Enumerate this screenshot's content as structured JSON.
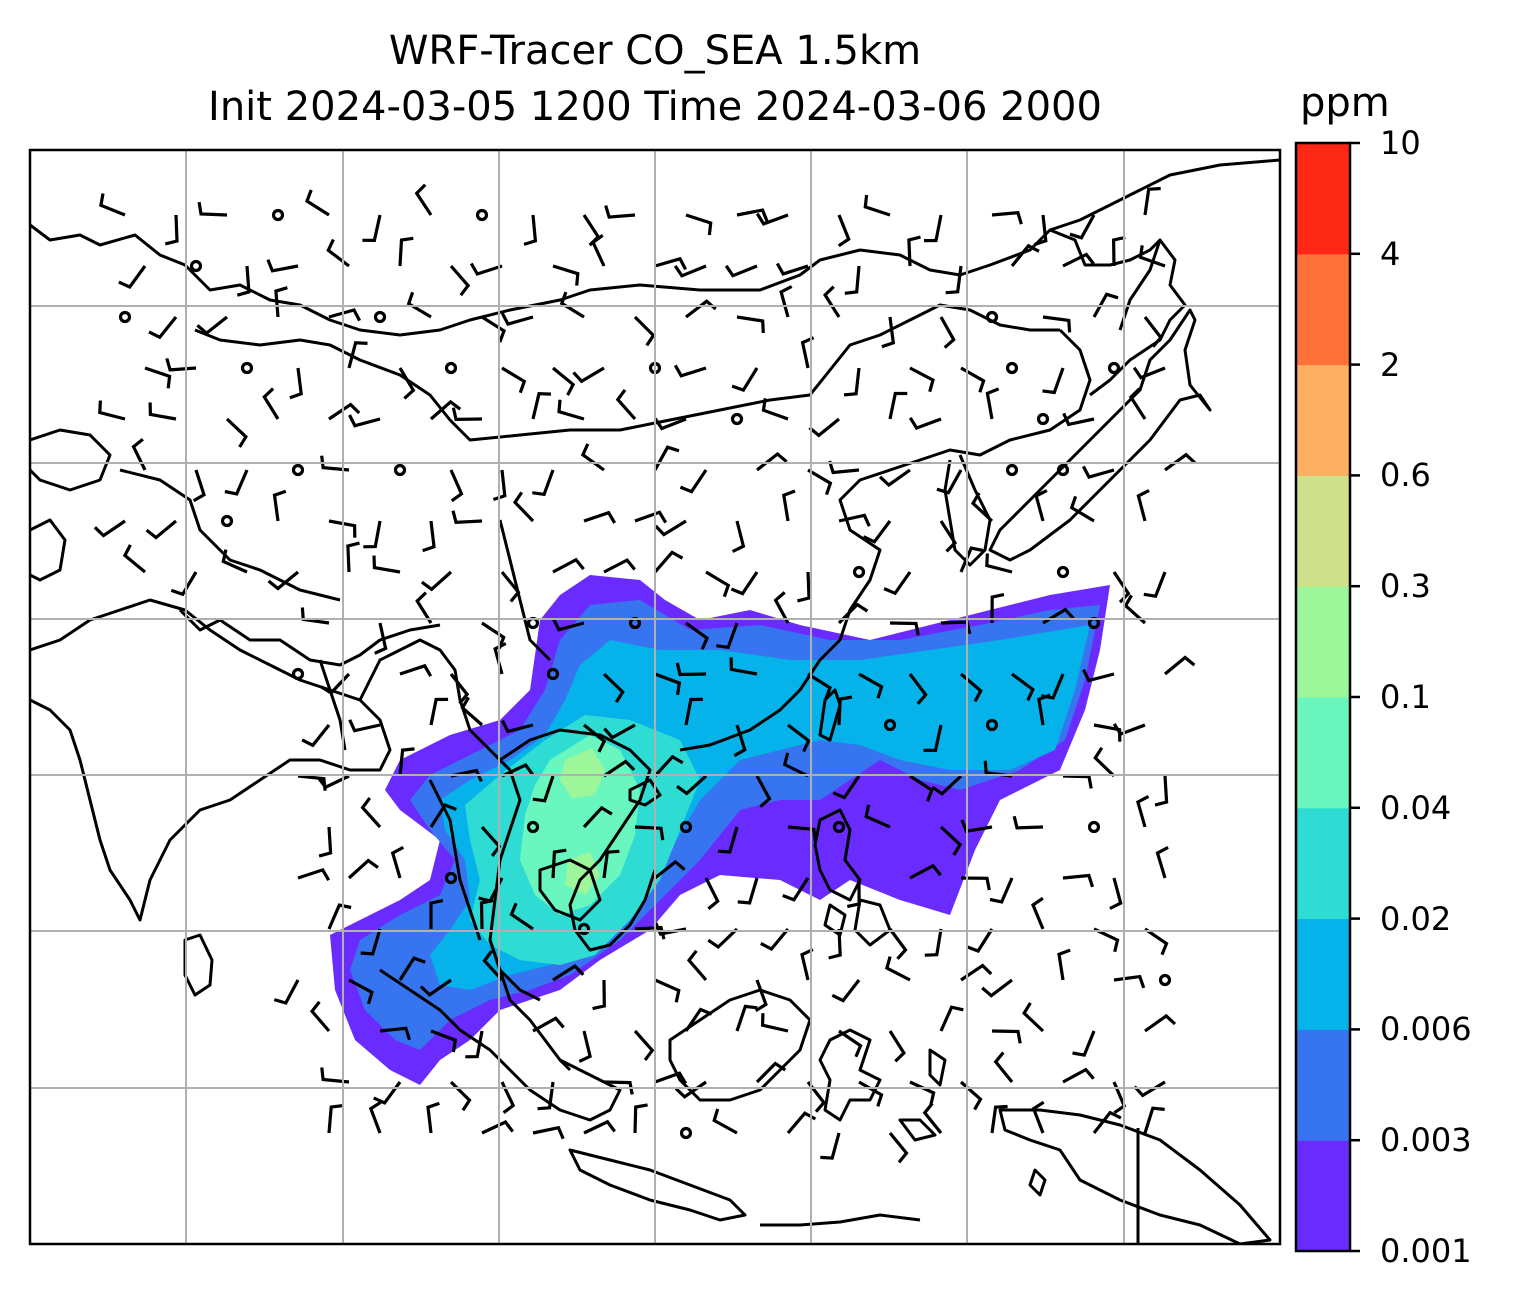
{
  "title_line1": "WRF-Tracer CO_SEA 1.5km",
  "title_line2": "Init 2024-03-05 1200 Time 2024-03-06 2000",
  "colorbar": {
    "unit": "ppm",
    "levels": [
      "0.001",
      "0.003",
      "0.006",
      "0.02",
      "0.04",
      "0.1",
      "0.3",
      "0.6",
      "2",
      "4",
      "10"
    ],
    "colors": [
      "#6a2bff",
      "#3775f0",
      "#06b2ea",
      "#2fdcd3",
      "#6af7bf",
      "#9df79a",
      "#cfe08a",
      "#fdb062",
      "#ff7138",
      "#fe2817"
    ]
  }
}
